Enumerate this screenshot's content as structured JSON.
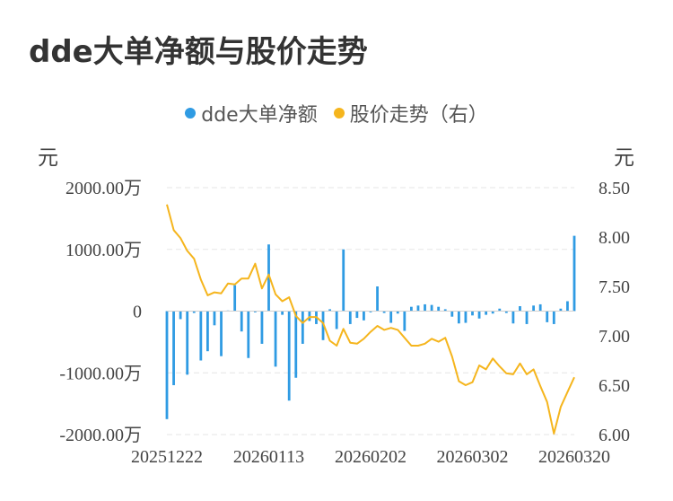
{
  "chart_data": {
    "type": "bar+line",
    "title": "dde大单净额与股价走势",
    "legend": [
      {
        "name": "dde大单净额",
        "color": "#2f9be3"
      },
      {
        "name": "股价走势（右）",
        "color": "#f5b51d"
      }
    ],
    "left_unit": "元",
    "right_unit": "元",
    "left_axis": {
      "ticks": [
        "2000.00万",
        "1000.00万",
        "0",
        "-1000.00万",
        "-2000.00万"
      ],
      "range": [
        -2000,
        2000
      ]
    },
    "right_axis": {
      "ticks": [
        "8.50",
        "8.00",
        "7.50",
        "7.00",
        "6.50",
        "6.00"
      ],
      "range": [
        6.0,
        8.5
      ]
    },
    "x_labels": [
      "20251222",
      "20260113",
      "20260202",
      "20260302",
      "20260320"
    ],
    "bar_series": {
      "name": "dde大单净额",
      "unit": "万元",
      "values": [
        -1750,
        -1200,
        -130,
        -1030,
        -30,
        -800,
        -650,
        -230,
        -730,
        10,
        420,
        -330,
        -760,
        -20,
        -530,
        1080,
        -900,
        -60,
        -1450,
        -1080,
        -530,
        -160,
        -210,
        -470,
        30,
        -290,
        1000,
        -210,
        -110,
        -150,
        -20,
        400,
        -30,
        -190,
        -40,
        -320,
        70,
        90,
        110,
        100,
        70,
        30,
        -90,
        -200,
        -190,
        -70,
        -120,
        -60,
        -40,
        40,
        -30,
        -200,
        80,
        -210,
        90,
        110,
        -180,
        -210,
        40,
        160,
        1220
      ],
      "color": "#2f9be3"
    },
    "line_series": {
      "name": "股价走势（右）",
      "unit": "元",
      "values": [
        8.33,
        8.07,
        7.99,
        7.86,
        7.78,
        7.57,
        7.41,
        7.44,
        7.43,
        7.53,
        7.52,
        7.58,
        7.58,
        7.73,
        7.48,
        7.62,
        7.42,
        7.35,
        7.39,
        7.2,
        7.13,
        7.19,
        7.19,
        7.13,
        6.95,
        6.9,
        7.07,
        6.93,
        6.92,
        6.97,
        7.04,
        7.1,
        7.06,
        7.08,
        7.06,
        6.98,
        6.9,
        6.9,
        6.92,
        6.97,
        6.94,
        6.98,
        6.79,
        6.54,
        6.5,
        6.53,
        6.7,
        6.66,
        6.77,
        6.69,
        6.62,
        6.61,
        6.72,
        6.61,
        6.66,
        6.49,
        6.33,
        6.01,
        6.28,
        6.43,
        6.58
      ],
      "color": "#f5b51d"
    },
    "grid": true
  }
}
